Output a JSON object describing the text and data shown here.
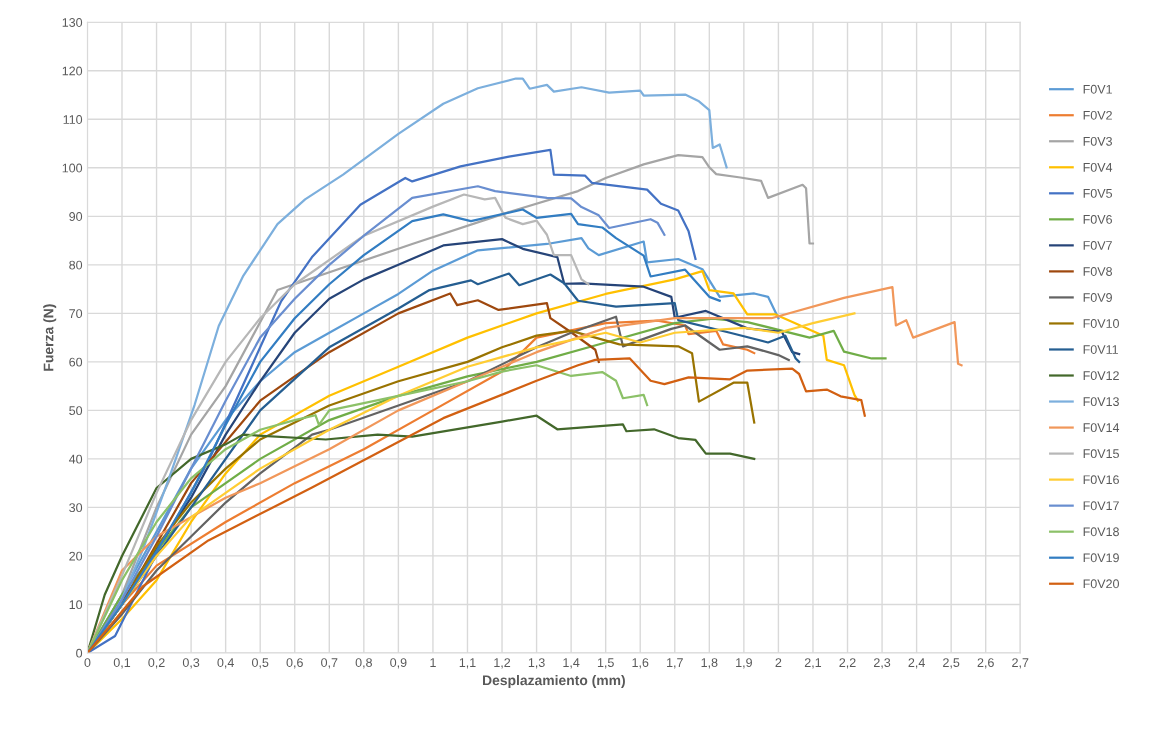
{
  "chart_data": {
    "type": "line",
    "xlabel": "Desplazamiento (mm)",
    "ylabel": "Fuerza (N)",
    "xlim": [
      0,
      2.7
    ],
    "ylim": [
      0,
      130
    ],
    "xticks": [
      0,
      {
        "value": 0.1,
        "label": "0,1"
      },
      {
        "value": 0.2,
        "label": "0,2"
      },
      {
        "value": 0.3,
        "label": "0,3"
      },
      {
        "value": 0.4,
        "label": "0,4"
      },
      {
        "value": 0.5,
        "label": "0,5"
      },
      {
        "value": 0.6,
        "label": "0,6"
      },
      {
        "value": 0.7,
        "label": "0,7"
      },
      {
        "value": 0.8,
        "label": "0,8"
      },
      {
        "value": 0.9,
        "label": "0,9"
      },
      1,
      {
        "value": 1.1,
        "label": "1,1"
      },
      {
        "value": 1.2,
        "label": "1,2"
      },
      {
        "value": 1.3,
        "label": "1,3"
      },
      {
        "value": 1.4,
        "label": "1,4"
      },
      {
        "value": 1.5,
        "label": "1,5"
      },
      {
        "value": 1.6,
        "label": "1,6"
      },
      {
        "value": 1.7,
        "label": "1,7"
      },
      {
        "value": 1.8,
        "label": "1,8"
      },
      {
        "value": 1.9,
        "label": "1,9"
      },
      2,
      {
        "value": 2.1,
        "label": "2,1"
      },
      {
        "value": 2.2,
        "label": "2,2"
      },
      {
        "value": 2.3,
        "label": "2,3"
      },
      {
        "value": 2.4,
        "label": "2,4"
      },
      {
        "value": 2.5,
        "label": "2,5"
      },
      {
        "value": 2.6,
        "label": "2,6"
      },
      {
        "value": 2.7,
        "label": "2,7"
      }
    ],
    "yticks": [
      0,
      10,
      20,
      30,
      40,
      50,
      60,
      70,
      80,
      90,
      100,
      110,
      120,
      130
    ],
    "grid": true,
    "legend": "right",
    "marker": "none",
    "line_style": "solid",
    "series": [
      {
        "name": "F0V1",
        "color": "#5b9bd5",
        "x": [
          0,
          0.1,
          0.2,
          0.3,
          0.4,
          0.5,
          0.6,
          0.7,
          0.8,
          0.9,
          1.0,
          1.13,
          1.33,
          1.43,
          1.45,
          1.48,
          1.61,
          1.62,
          1.71,
          1.78,
          1.83,
          1.93,
          1.97,
          2.0
        ],
        "values": [
          0,
          12,
          25,
          38,
          48,
          56,
          62,
          66,
          70,
          74,
          78.8,
          83,
          84.3,
          85.5,
          83.4,
          82,
          84.8,
          80.5,
          81.2,
          79.1,
          73.4,
          74.1,
          73.4,
          69
        ]
      },
      {
        "name": "F0V2",
        "color": "#ed7d31",
        "x": [
          0,
          0.1,
          0.2,
          0.4,
          0.6,
          0.8,
          1.0,
          1.2,
          1.3,
          1.5,
          1.65,
          1.73,
          1.74,
          1.82,
          1.84,
          1.91,
          1.93
        ],
        "values": [
          0,
          10,
          18,
          27,
          35,
          42,
          50,
          58,
          65,
          68,
          68.5,
          67.5,
          65.7,
          66.4,
          63.6,
          62.5,
          61.8
        ]
      },
      {
        "name": "F0V3",
        "color": "#a5a5a5",
        "x": [
          0,
          0.1,
          0.2,
          0.3,
          0.4,
          0.55,
          0.94,
          1.23,
          1.42,
          1.5,
          1.61,
          1.71,
          1.78,
          1.8,
          1.82,
          1.89,
          1.95,
          1.97,
          2.07,
          2.08,
          2.09,
          2.1
        ],
        "values": [
          0,
          12,
          30,
          45,
          55,
          74.8,
          84.3,
          91.1,
          95.2,
          97.9,
          100.7,
          102.6,
          102.2,
          100.1,
          98.7,
          98,
          97.3,
          93.8,
          96.5,
          95.8,
          84.4,
          84.4
        ]
      },
      {
        "name": "F0V4",
        "color": "#ffc000",
        "x": [
          0,
          0.1,
          0.2,
          0.3,
          0.4,
          0.5,
          0.7,
          0.9,
          1.1,
          1.3,
          1.5,
          1.7,
          1.78,
          1.8,
          1.87,
          1.91,
          1.99,
          2.13,
          2.14,
          2.19,
          2.22,
          2.23
        ],
        "values": [
          0,
          7,
          15,
          27,
          37,
          45,
          53,
          59,
          65,
          70,
          74,
          77,
          78.7,
          74.8,
          74.1,
          69.8,
          69.8,
          65.4,
          60.4,
          59.3,
          53.2,
          52
        ]
      },
      {
        "name": "F0V5",
        "color": "#4472c4",
        "x": [
          0,
          0.08,
          0.2,
          0.35,
          0.5,
          0.56,
          0.65,
          0.79,
          0.92,
          0.94,
          1.08,
          1.22,
          1.34,
          1.35,
          1.44,
          1.46,
          1.62,
          1.66,
          1.71,
          1.74,
          1.76
        ],
        "values": [
          0,
          3.5,
          20.5,
          39.5,
          63,
          72.4,
          81.6,
          92.4,
          97.9,
          97.2,
          100.3,
          102.3,
          103.7,
          98.6,
          98.4,
          96.9,
          95.5,
          92.6,
          91.2,
          86.9,
          81.2
        ]
      },
      {
        "name": "F0V6",
        "color": "#70ad47",
        "x": [
          0,
          0.1,
          0.3,
          0.5,
          0.7,
          0.9,
          1.1,
          1.3,
          1.5,
          1.7,
          1.81,
          1.91,
          2.09,
          2.16,
          2.19,
          2.27,
          2.31
        ],
        "values": [
          0,
          12,
          30,
          40,
          48,
          53,
          57,
          60,
          64,
          68,
          68.9,
          68.2,
          65,
          66.4,
          62.1,
          60.7,
          60.7
        ]
      },
      {
        "name": "F0V7",
        "color": "#264478",
        "x": [
          0,
          0.3,
          0.4,
          0.5,
          0.6,
          0.7,
          0.8,
          0.9,
          1.03,
          1.2,
          1.26,
          1.36,
          1.38,
          1.43,
          1.61,
          1.69,
          1.7,
          1.79,
          1.91,
          2.01,
          2.04,
          2.06
        ],
        "values": [
          0,
          32,
          45,
          56,
          66,
          73,
          77,
          80,
          84,
          85.3,
          83.3,
          81.6,
          76.1,
          76.2,
          75.5,
          73.4,
          69.1,
          70.5,
          66.9,
          66.2,
          62,
          61.6
        ]
      },
      {
        "name": "F0V8",
        "color": "#9e480e",
        "x": [
          0,
          0.1,
          0.3,
          0.5,
          0.7,
          0.9,
          1.05,
          1.07,
          1.13,
          1.19,
          1.33,
          1.34,
          1.4,
          1.47,
          1.48
        ],
        "values": [
          0,
          10,
          35,
          52,
          62,
          70,
          74.1,
          71.7,
          72.7,
          70.7,
          72.1,
          69,
          66.1,
          62.5,
          60
        ]
      },
      {
        "name": "F0V9",
        "color": "#636363",
        "x": [
          0,
          0.1,
          0.2,
          0.3,
          0.4,
          0.5,
          0.65,
          0.7,
          0.9,
          1.1,
          1.3,
          1.4,
          1.53,
          1.55,
          1.69,
          1.73,
          1.83,
          1.91,
          2.0,
          2.03
        ],
        "values": [
          0,
          8,
          17,
          24,
          31,
          37,
          45,
          46,
          51,
          56,
          63,
          66,
          69.3,
          63.2,
          66.8,
          67.5,
          62.5,
          63.2,
          61.4,
          60.4
        ]
      },
      {
        "name": "F0V10",
        "color": "#997300",
        "x": [
          0,
          0.1,
          0.2,
          0.3,
          0.4,
          0.5,
          0.7,
          0.9,
          1.1,
          1.2,
          1.3,
          1.4,
          1.54,
          1.71,
          1.75,
          1.77,
          1.87,
          1.91,
          1.93
        ],
        "values": [
          0,
          10,
          22,
          31,
          38,
          44,
          51,
          56,
          60,
          63,
          65.4,
          66.4,
          63.6,
          63.2,
          61.8,
          51.8,
          55.7,
          55.7,
          47.5
        ]
      },
      {
        "name": "F0V11",
        "color": "#255e91",
        "x": [
          0,
          0.3,
          0.5,
          0.7,
          0.9,
          0.99,
          1.11,
          1.13,
          1.22,
          1.25,
          1.34,
          1.38,
          1.42,
          1.53,
          1.7,
          1.71,
          1.86,
          1.97,
          2.02,
          2.05,
          2.06
        ],
        "values": [
          0,
          30,
          50,
          63,
          71,
          74.8,
          76.8,
          76,
          78.2,
          75.8,
          78,
          76.2,
          72.6,
          71.4,
          72.1,
          68.6,
          66,
          64,
          65.4,
          60.7,
          60
        ]
      },
      {
        "name": "F0V12",
        "color": "#43682b",
        "x": [
          0,
          0.05,
          0.1,
          0.2,
          0.3,
          0.4,
          0.45,
          0.69,
          0.84,
          0.94,
          1.2,
          1.3,
          1.36,
          1.55,
          1.56,
          1.64,
          1.71,
          1.76,
          1.79,
          1.86,
          1.93
        ],
        "values": [
          0,
          12,
          20,
          34,
          40,
          43,
          45,
          44,
          45,
          44.6,
          47.7,
          48.9,
          46.1,
          47.1,
          45.7,
          46.1,
          44.3,
          43.9,
          41.1,
          41.1,
          40
        ]
      },
      {
        "name": "F0V13",
        "color": "#7cafdd",
        "x": [
          0,
          0.09,
          0.16,
          0.24,
          0.31,
          0.38,
          0.45,
          0.55,
          0.63,
          0.74,
          0.9,
          1.03,
          1.13,
          1.24,
          1.26,
          1.28,
          1.33,
          1.35,
          1.43,
          1.51,
          1.6,
          1.61,
          1.73,
          1.77,
          1.8,
          1.81,
          1.83,
          1.85
        ],
        "values": [
          0,
          9.6,
          21.2,
          36.8,
          51.1,
          67.4,
          77.6,
          88.4,
          93.5,
          98.6,
          107,
          113.2,
          116.4,
          118.4,
          118.4,
          116.3,
          117.1,
          115.7,
          116.6,
          115.5,
          115.9,
          114.9,
          115.1,
          113.7,
          111.9,
          104.1,
          104.8,
          100.1
        ]
      },
      {
        "name": "F0V14",
        "color": "#f1975a",
        "x": [
          0,
          0.1,
          0.2,
          0.4,
          0.5,
          0.7,
          0.9,
          1.1,
          1.3,
          1.5,
          1.7,
          1.8,
          1.98,
          2.19,
          2.33,
          2.34,
          2.37,
          2.39,
          2.51,
          2.52,
          2.53
        ],
        "values": [
          0,
          17,
          24,
          32,
          35,
          42,
          50,
          56,
          62,
          67,
          69,
          69,
          69,
          73.2,
          75.4,
          67.5,
          68.6,
          65,
          68.2,
          59.6,
          59.3
        ]
      },
      {
        "name": "F0V15",
        "color": "#b7b7b7",
        "x": [
          0,
          0.1,
          0.2,
          0.3,
          0.4,
          0.5,
          0.6,
          0.8,
          1.0,
          1.09,
          1.15,
          1.18,
          1.21,
          1.26,
          1.3,
          1.33,
          1.35,
          1.4,
          1.43,
          1.45
        ],
        "values": [
          0,
          16,
          33,
          48,
          60,
          69,
          76,
          86,
          92,
          94.5,
          93.5,
          93.8,
          89.7,
          88.4,
          89.1,
          86.2,
          82,
          82,
          77,
          76
        ]
      },
      {
        "name": "F0V16",
        "color": "#ffcd33",
        "x": [
          0,
          0.1,
          0.2,
          0.3,
          0.4,
          0.5,
          0.7,
          0.9,
          1.1,
          1.3,
          1.5,
          1.6,
          1.7,
          1.9,
          2.0,
          2.1,
          2.22
        ],
        "values": [
          0,
          10,
          20,
          28,
          33,
          38,
          46,
          53,
          59,
          63,
          66,
          64,
          66,
          67,
          66,
          68,
          70
        ]
      },
      {
        "name": "F0V17",
        "color": "#698ed0",
        "x": [
          0,
          0.1,
          0.2,
          0.3,
          0.4,
          0.5,
          0.6,
          0.7,
          0.8,
          0.94,
          1.13,
          1.18,
          1.33,
          1.4,
          1.43,
          1.48,
          1.51,
          1.63,
          1.65,
          1.67
        ],
        "values": [
          0,
          11,
          24,
          38,
          52,
          65,
          73,
          80,
          86,
          93.8,
          96.2,
          95.2,
          93.8,
          93.7,
          91.9,
          90.2,
          87.6,
          89.4,
          88.7,
          86.2
        ]
      },
      {
        "name": "F0V18",
        "color": "#8cc168",
        "x": [
          0,
          0.1,
          0.2,
          0.3,
          0.4,
          0.5,
          0.6,
          0.66,
          0.67,
          0.7,
          0.9,
          1.1,
          1.2,
          1.3,
          1.4,
          1.49,
          1.53,
          1.55,
          1.61,
          1.62
        ],
        "values": [
          0,
          15,
          27,
          36,
          42,
          46,
          48,
          49,
          47,
          50,
          53,
          56,
          58,
          59.3,
          57.1,
          57.9,
          56.1,
          52.5,
          53.2,
          51.1
        ]
      },
      {
        "name": "F0V19",
        "color": "#327dc2",
        "x": [
          0,
          0.1,
          0.2,
          0.3,
          0.4,
          0.5,
          0.6,
          0.7,
          0.8,
          0.94,
          1.03,
          1.11,
          1.26,
          1.3,
          1.4,
          1.42,
          1.49,
          1.53,
          1.61,
          1.63,
          1.73,
          1.8,
          1.83
        ],
        "values": [
          0,
          10,
          21,
          33,
          47,
          60,
          69,
          76,
          82,
          89,
          90.4,
          89,
          91.4,
          89.7,
          90.5,
          88.4,
          87.7,
          85.5,
          81.9,
          77.6,
          79,
          73.4,
          72.6
        ]
      },
      {
        "name": "F0V20",
        "color": "#d26012",
        "x": [
          0,
          0.16,
          0.35,
          0.65,
          1.03,
          1.3,
          1.42,
          1.47,
          1.57,
          1.63,
          1.67,
          1.74,
          1.86,
          1.91,
          2.04,
          2.06,
          2.08,
          2.14,
          2.18,
          2.24,
          2.25
        ],
        "values": [
          0,
          13.7,
          23.2,
          34.1,
          48.4,
          56.1,
          59.3,
          60.4,
          60.7,
          56.1,
          55.4,
          56.8,
          56.4,
          58.2,
          58.6,
          57.5,
          53.9,
          54.3,
          52.9,
          52.1,
          48.9
        ]
      }
    ]
  }
}
